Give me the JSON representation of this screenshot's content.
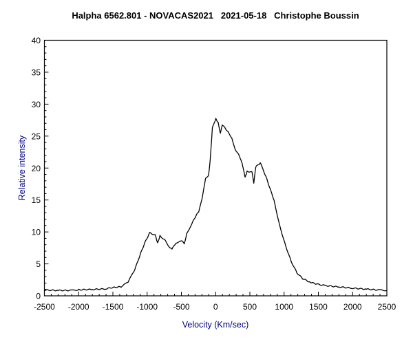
{
  "chart_data": {
    "type": "line",
    "title": "Halpha 6562.801 - NOVACAS2021   2021-05-18   Christophe Boussin",
    "xlabel": "Velocity (Km/sec)",
    "ylabel": "Relative intensity",
    "xlim": [
      -2500,
      2500
    ],
    "ylim": [
      0,
      40
    ],
    "xticks": [
      -2500,
      -2000,
      -1500,
      -1000,
      -500,
      0,
      500,
      1000,
      1500,
      2000,
      2500
    ],
    "xtick_labels": [
      "-2500",
      "-2000",
      "-1500",
      "-1000",
      "-500",
      "0",
      "500",
      "1000",
      "1500",
      "2000",
      "2500"
    ],
    "yticks": [
      0,
      5,
      10,
      15,
      20,
      25,
      30,
      35,
      40
    ],
    "ytick_labels": [
      "0",
      "5",
      "10",
      "15",
      "20",
      "25",
      "30",
      "35",
      "40"
    ],
    "grid": false,
    "line_color": "#000000",
    "axis_label_color": "#000080",
    "series": [
      {
        "x": [
          -2500,
          -2300,
          -2100,
          -2000,
          -1800,
          -1600,
          -1530,
          -1380,
          -1280,
          -1180,
          -1097,
          -1030,
          -963,
          -880,
          -847,
          -813,
          -730,
          -680,
          -637,
          -580,
          -480,
          -457,
          -423,
          -347,
          -280,
          -247,
          -197,
          -147,
          -103,
          -80,
          -47,
          3,
          37,
          70,
          97,
          187,
          237,
          287,
          337,
          387,
          430,
          460,
          530,
          557,
          587,
          653,
          737,
          803,
          853,
          937,
          1020,
          1103,
          1187,
          1270,
          1387,
          1470,
          1600,
          1800,
          2000,
          2200,
          2400,
          2500
        ],
        "y": [
          0.9,
          0.85,
          0.85,
          0.95,
          1.0,
          1.1,
          1.26,
          1.43,
          2.15,
          4.1,
          6.6,
          8.4,
          9.86,
          9.5,
          8.25,
          9.4,
          8.6,
          7.7,
          7.3,
          8.3,
          8.6,
          8.1,
          9.7,
          11.3,
          12.7,
          13.1,
          15.2,
          18.3,
          18.9,
          21.1,
          26.3,
          27.7,
          27.1,
          25.4,
          26.8,
          25.6,
          24.7,
          22.9,
          22.2,
          20.8,
          18.5,
          19.5,
          19.35,
          17.7,
          20.2,
          20.8,
          18.6,
          16.5,
          14.9,
          10.9,
          7.9,
          5.4,
          3.6,
          2.7,
          2.1,
          1.86,
          1.6,
          1.4,
          1.2,
          1.05,
          0.9,
          0.85
        ]
      }
    ]
  }
}
